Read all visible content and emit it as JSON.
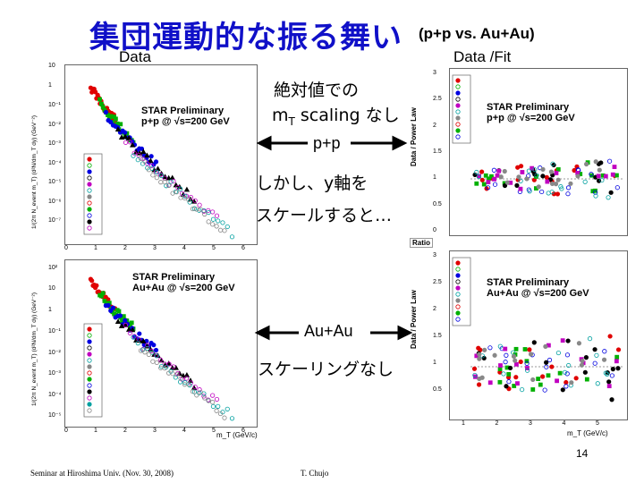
{
  "slide": {
    "title": "集団運動的な振る舞い",
    "subtitle": "(p+p vs. Au+Au)",
    "data_left": "Data",
    "data_right": "Data /Fit",
    "note1_line1": "絶対値での",
    "note1_line2_pre": "m",
    "note1_line2_sub": "T",
    "note1_line2_post": " scaling なし",
    "pp_label": "p+p",
    "note2_line1": "しかし、y軸を",
    "note2_line2": "スケールすると…",
    "auau_label": "Au+Au",
    "note3": "スケーリングなし",
    "page_number": "14",
    "footer_left": "Seminar at Hiroshima Univ. (Nov. 30, 2008)",
    "footer_center": "T. Chujo"
  },
  "plots": {
    "top_left": {
      "star1": "STAR Preliminary",
      "star2": "p+p @ √s=200 GeV",
      "ylabel": "1/(2π N_event m_T) (d²N/dm_T dy) (GeV⁻²)",
      "yticks": [
        "10",
        "1",
        "10⁻¹",
        "10⁻²",
        "10⁻³",
        "10⁻⁴",
        "10⁻⁵",
        "10⁻⁶",
        "10⁻⁷"
      ],
      "xticks": [
        "0",
        "1",
        "2",
        "3",
        "4",
        "5",
        "6"
      ]
    },
    "bottom_left": {
      "star1": "STAR Preliminary",
      "star2": "Au+Au @ √s=200 GeV",
      "ylabel": "1/(2π N_event m_T) (d²N/dm_T dy) (GeV⁻²)",
      "yticks": [
        "10²",
        "10",
        "1",
        "10⁻¹",
        "10⁻²",
        "10⁻³",
        "10⁻⁴",
        "10⁻⁵"
      ],
      "xticks": [
        "0",
        "1",
        "2",
        "3",
        "4",
        "5",
        "6"
      ],
      "xlabel": "m_T (GeV/c)"
    },
    "top_right": {
      "star1": "STAR Preliminary",
      "star2": "p+p @ √s=200 GeV",
      "ylabel": "Data / Power Law",
      "yticks": [
        "3",
        "2.5",
        "2",
        "1.5",
        "1",
        "0.5",
        "0"
      ],
      "ratio_label": "Ratio"
    },
    "bottom_right": {
      "star1": "STAR Preliminary",
      "star2": "Au+Au @ √s=200 GeV",
      "ylabel": "Data / Power Law",
      "yticks": [
        "3",
        "2.5",
        "2",
        "1.5",
        "1",
        "0.5"
      ],
      "xticks": [
        "1",
        "2",
        "3",
        "4",
        "5"
      ],
      "xlabel": "m_T (GeV/c)"
    }
  },
  "colors": {
    "title": "#1010c8",
    "series": [
      "#e00000",
      "#00b000",
      "#0000e0",
      "#000000",
      "#c000c0",
      "#00a0a0",
      "#888888"
    ]
  }
}
